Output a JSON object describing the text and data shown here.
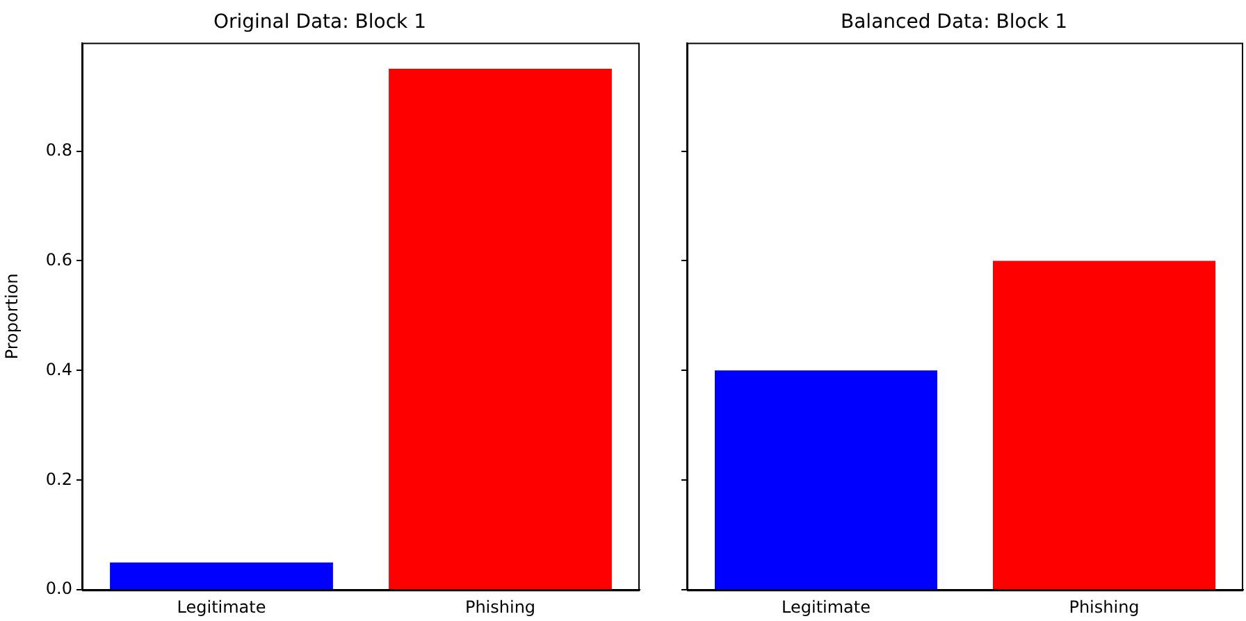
{
  "chart_data": [
    {
      "type": "bar",
      "title": "Original Data: Block 1",
      "ylabel": "Proportion",
      "categories": [
        "Legitimate",
        "Phishing"
      ],
      "values": [
        0.05,
        0.95
      ],
      "colors": [
        "#0000ff",
        "#ff0000"
      ],
      "ylim": [
        0,
        0.9975
      ],
      "yticks": [
        {
          "value": 0,
          "label": "0.0"
        },
        0.2,
        0.4,
        0.6,
        0.8
      ],
      "grid": false,
      "legend": false
    },
    {
      "type": "bar",
      "title": "Balanced Data: Block 1",
      "categories": [
        "Legitimate",
        "Phishing"
      ],
      "values": [
        0.4,
        0.6
      ],
      "colors": [
        "#0000ff",
        "#ff0000"
      ],
      "ylim": [
        0,
        0.9975
      ],
      "yticks": [
        0,
        0.2,
        0.4,
        0.6,
        0.8
      ],
      "grid": false,
      "legend": false,
      "tick_labels": "x"
    }
  ]
}
